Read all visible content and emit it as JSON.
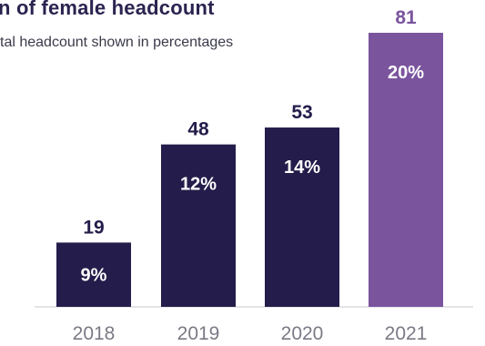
{
  "chart_data": {
    "type": "bar",
    "title": "n of female headcount",
    "subtitle": "tal headcount shown in percentages",
    "categories": [
      "2018",
      "2019",
      "2020",
      "2021"
    ],
    "values": [
      19,
      48,
      53,
      81
    ],
    "percent_labels": [
      "9%",
      "12%",
      "14%",
      "20%"
    ],
    "bar_colors": [
      "#241c4a",
      "#241c4a",
      "#241c4a",
      "#7b549e"
    ],
    "value_label_colors": [
      "#241c4a",
      "#241c4a",
      "#241c4a",
      "#7b549e"
    ],
    "ylim": [
      0,
      81
    ],
    "grid": false,
    "legend": "none"
  }
}
